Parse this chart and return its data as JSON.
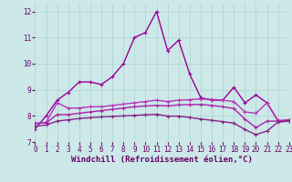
{
  "xlabel": "Windchill (Refroidissement éolien,°C)",
  "background_color": "#cce8e8",
  "grid_color": "#b0d0d0",
  "xlim": [
    0,
    23
  ],
  "ylim": [
    7,
    12.3
  ],
  "yticks": [
    7,
    8,
    9,
    10,
    11,
    12
  ],
  "xticks": [
    0,
    1,
    2,
    3,
    4,
    5,
    6,
    7,
    8,
    9,
    10,
    11,
    12,
    13,
    14,
    15,
    16,
    17,
    18,
    19,
    20,
    21,
    22,
    23
  ],
  "series": [
    [
      7.5,
      8.0,
      8.6,
      8.9,
      9.3,
      9.3,
      9.2,
      9.5,
      10.0,
      11.0,
      11.2,
      12.0,
      10.5,
      10.9,
      9.6,
      8.7,
      8.6,
      8.6,
      9.1,
      8.5,
      8.8,
      8.5,
      7.8,
      7.8
    ],
    [
      7.7,
      7.75,
      8.5,
      8.3,
      8.3,
      8.35,
      8.35,
      8.4,
      8.45,
      8.5,
      8.55,
      8.6,
      8.55,
      8.6,
      8.62,
      8.65,
      8.63,
      8.6,
      8.55,
      8.15,
      8.1,
      8.5,
      7.82,
      7.85
    ],
    [
      7.72,
      7.73,
      8.05,
      8.05,
      8.1,
      8.15,
      8.2,
      8.25,
      8.3,
      8.35,
      8.38,
      8.4,
      8.38,
      8.42,
      8.43,
      8.44,
      8.4,
      8.35,
      8.28,
      7.88,
      7.55,
      7.8,
      7.8,
      7.83
    ],
    [
      7.6,
      7.65,
      7.8,
      7.85,
      7.9,
      7.93,
      7.96,
      7.98,
      8.0,
      8.02,
      8.04,
      8.06,
      7.99,
      7.99,
      7.94,
      7.88,
      7.83,
      7.78,
      7.72,
      7.48,
      7.28,
      7.42,
      7.76,
      7.8
    ]
  ],
  "colors": [
    "#990099",
    "#bb33bb",
    "#aa22aa",
    "#882288"
  ],
  "line_width": 1.0,
  "marker": "+",
  "marker_size": 3,
  "xlabel_color": "#660066",
  "tick_color": "#660066",
  "tick_fontsize": 5.5,
  "xlabel_fontsize": 6.5
}
